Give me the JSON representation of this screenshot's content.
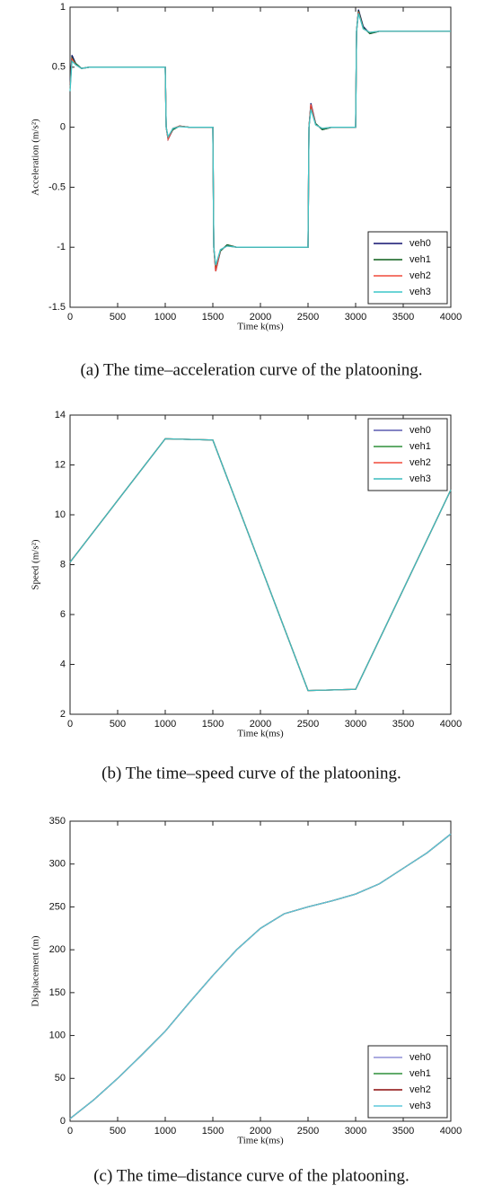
{
  "chart_data": [
    {
      "type": "line",
      "caption": "(a) The time–acceleration curve of the platooning.",
      "x_label": "Time k(ms)",
      "y_label": "Acceleration (m/s²)",
      "x": [
        0,
        20,
        60,
        120,
        200,
        1000,
        1010,
        1030,
        1080,
        1150,
        1250,
        1500,
        1510,
        1530,
        1580,
        1650,
        1750,
        2500,
        2510,
        2530,
        2580,
        2650,
        2750,
        3000,
        3010,
        3030,
        3080,
        3150,
        3250,
        4000
      ],
      "series": [
        {
          "name": "veh0",
          "color": "#10106e",
          "values": [
            0.35,
            0.6,
            0.53,
            0.49,
            0.5,
            0.5,
            0.0,
            -0.1,
            -0.02,
            0.01,
            0,
            0,
            -1.0,
            -1.2,
            -1.03,
            -0.98,
            -1.0,
            -1.0,
            0.0,
            0.2,
            0.03,
            -0.02,
            0,
            0,
            0.8,
            0.98,
            0.84,
            0.78,
            0.8,
            0.8
          ]
        },
        {
          "name": "veh1",
          "color": "#0b5e1a",
          "values": [
            0.33,
            0.58,
            0.53,
            0.49,
            0.5,
            0.5,
            0.0,
            -0.09,
            -0.02,
            0.01,
            0,
            0,
            -1.0,
            -1.18,
            -1.03,
            -0.98,
            -1.0,
            -1.0,
            0.0,
            0.18,
            0.03,
            -0.02,
            0,
            0,
            0.8,
            0.97,
            0.83,
            0.78,
            0.8,
            0.8
          ]
        },
        {
          "name": "veh2",
          "color": "#f04a3a",
          "values": [
            0.32,
            0.57,
            0.52,
            0.49,
            0.5,
            0.5,
            0.0,
            -0.1,
            -0.01,
            0.01,
            0,
            0,
            -1.0,
            -1.2,
            -1.02,
            -0.99,
            -1.0,
            -1.0,
            0.0,
            0.19,
            0.02,
            -0.01,
            0,
            0,
            0.8,
            0.96,
            0.82,
            0.79,
            0.8,
            0.8
          ]
        },
        {
          "name": "veh3",
          "color": "#3cc6c8",
          "values": [
            0.3,
            0.55,
            0.52,
            0.49,
            0.5,
            0.5,
            0.0,
            -0.08,
            -0.01,
            0.005,
            0,
            0,
            -1.0,
            -1.15,
            -1.02,
            -0.99,
            -1.0,
            -1.0,
            0.0,
            0.15,
            0.02,
            -0.01,
            0,
            0,
            0.8,
            0.95,
            0.82,
            0.79,
            0.8,
            0.8
          ]
        }
      ],
      "xlim": [
        0,
        4000
      ],
      "xticks": [
        0,
        500,
        1000,
        1500,
        2000,
        2500,
        3000,
        3500,
        4000
      ],
      "ylim": [
        -1.5,
        1
      ],
      "yticks": [
        -1.5,
        -1,
        -0.5,
        0,
        0.5,
        1
      ],
      "legend": "lower right"
    },
    {
      "type": "line",
      "caption": "(b) The time–speed curve of the platooning.",
      "x_label": "Time k(ms)",
      "y_label": "Speed (m/s²)",
      "x": [
        0,
        1000,
        1500,
        2500,
        3000,
        4000
      ],
      "series": [
        {
          "name": "veh0",
          "color": "#5b5bb0",
          "values": [
            8.1,
            13.05,
            13.0,
            2.95,
            3.0,
            11.0
          ]
        },
        {
          "name": "veh1",
          "color": "#2f8f3a",
          "values": [
            8.1,
            13.05,
            13.0,
            2.95,
            3.0,
            11.0
          ]
        },
        {
          "name": "veh2",
          "color": "#f04a3a",
          "values": [
            8.1,
            13.05,
            13.0,
            2.95,
            3.0,
            11.0
          ]
        },
        {
          "name": "veh3",
          "color": "#3cbcbe",
          "values": [
            8.1,
            13.05,
            13.0,
            2.95,
            3.0,
            11.0
          ]
        }
      ],
      "xlim": [
        0,
        4000
      ],
      "xticks": [
        0,
        500,
        1000,
        1500,
        2000,
        2500,
        3000,
        3500,
        4000
      ],
      "ylim": [
        2,
        14
      ],
      "yticks": [
        2,
        4,
        6,
        8,
        10,
        12,
        14
      ],
      "legend": "upper right"
    },
    {
      "type": "line",
      "caption": "(c) The time–distance curve of the platooning.",
      "x_label": "Time k(ms)",
      "y_label": "Displacement (m)",
      "x": [
        0,
        250,
        500,
        750,
        1000,
        1250,
        1500,
        1750,
        2000,
        2250,
        2500,
        2750,
        3000,
        3250,
        3500,
        3750,
        4000
      ],
      "series": [
        {
          "name": "veh0",
          "color": "#8f8fd6",
          "values": [
            3,
            25,
            50,
            77,
            105,
            138,
            170,
            200,
            225,
            242,
            250,
            257,
            265,
            277,
            295,
            313,
            335
          ]
        },
        {
          "name": "veh1",
          "color": "#2f8f3a",
          "values": [
            3,
            25,
            50,
            77,
            105,
            138,
            170,
            200,
            225,
            242,
            250,
            257,
            265,
            277,
            295,
            313,
            335
          ]
        },
        {
          "name": "veh2",
          "color": "#8b0a0a",
          "values": [
            3,
            25,
            50,
            77,
            105,
            138,
            170,
            200,
            225,
            242,
            250,
            257,
            265,
            277,
            295,
            313,
            335
          ]
        },
        {
          "name": "veh3",
          "color": "#5ec8dc",
          "values": [
            3,
            25,
            50,
            77,
            105,
            138,
            170,
            200,
            225,
            242,
            250,
            257,
            265,
            277,
            295,
            313,
            335
          ]
        }
      ],
      "xlim": [
        0,
        4000
      ],
      "xticks": [
        0,
        500,
        1000,
        1500,
        2000,
        2500,
        3000,
        3500,
        4000
      ],
      "ylim": [
        0,
        350
      ],
      "yticks": [
        0,
        50,
        100,
        150,
        200,
        250,
        300,
        350
      ],
      "legend": "lower right"
    }
  ]
}
